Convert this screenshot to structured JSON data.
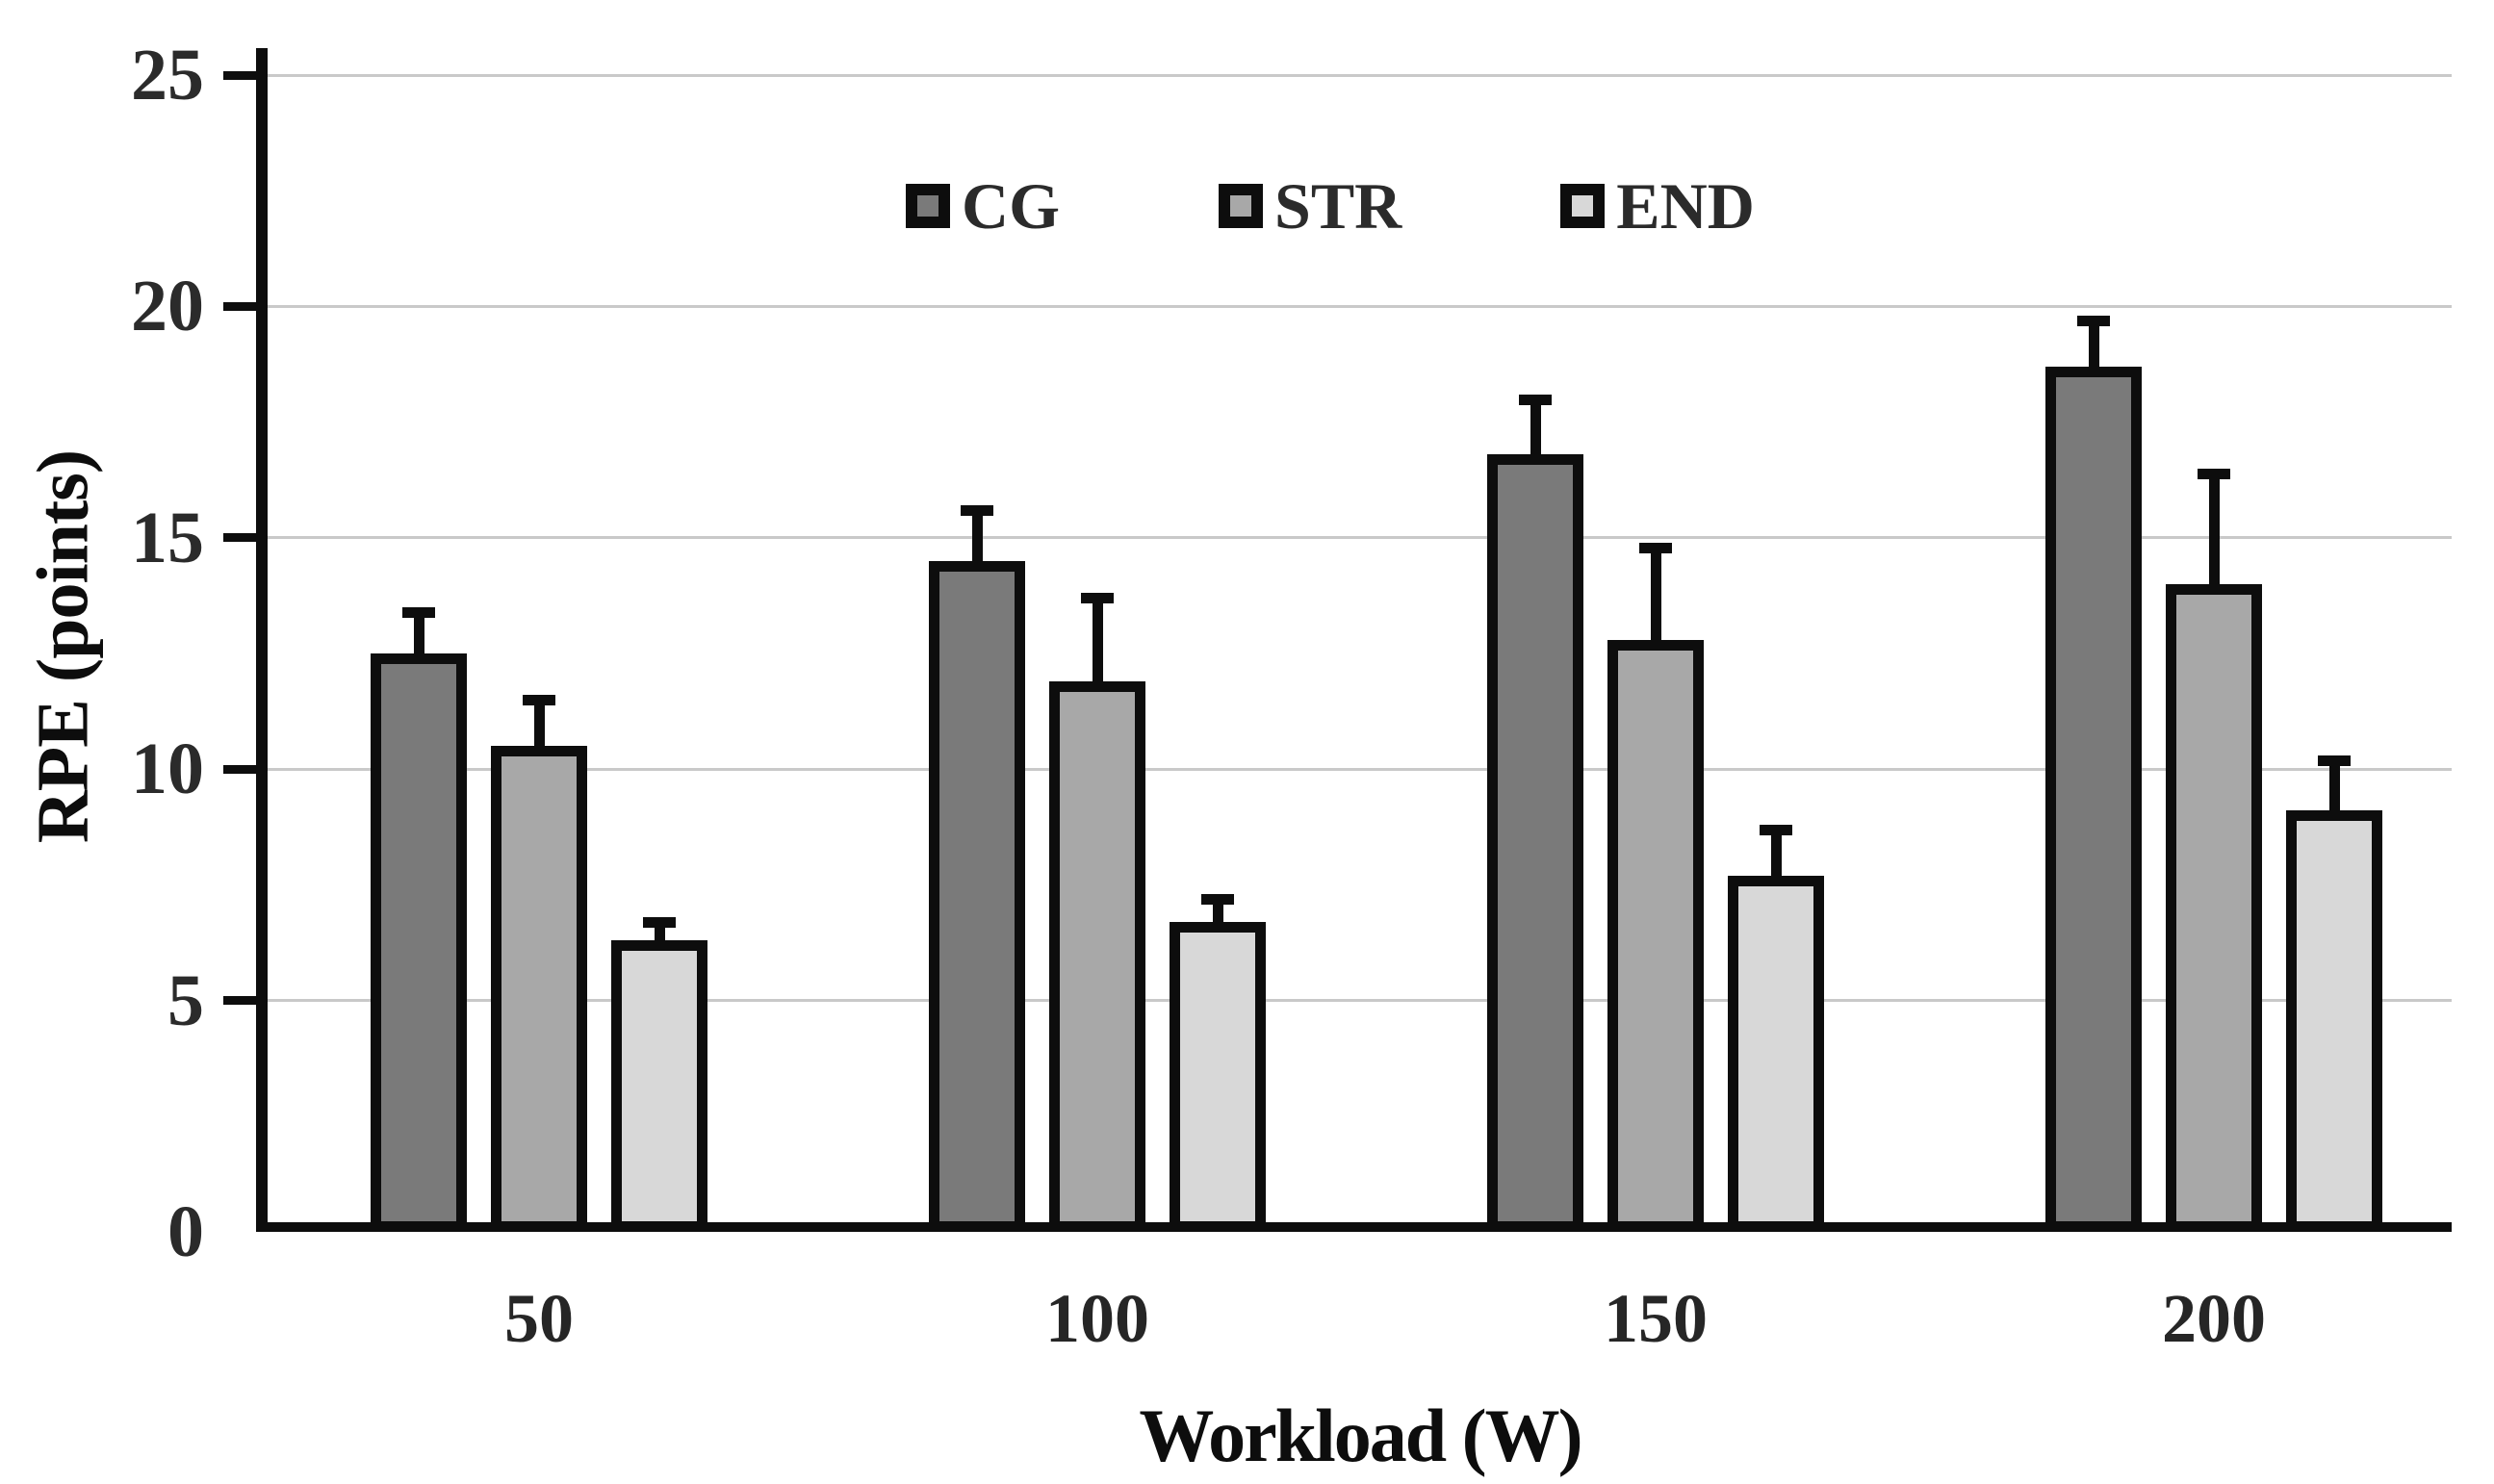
{
  "chart_data": {
    "type": "bar",
    "title": "",
    "xlabel": "Workload (W)",
    "ylabel": "RPE (points)",
    "categories": [
      "50",
      "100",
      "150",
      "200"
    ],
    "series": [
      {
        "name": "CG",
        "color": "#7a7a7a",
        "values": [
          12.5,
          14.5,
          16.8,
          18.7
        ],
        "errors_up": [
          1.0,
          1.2,
          1.3,
          1.1
        ]
      },
      {
        "name": "STR",
        "color": "#a8a8a8",
        "values": [
          10.5,
          11.9,
          12.8,
          14.0
        ],
        "errors_up": [
          1.1,
          1.9,
          2.1,
          2.5
        ]
      },
      {
        "name": "END",
        "color": "#d8d8d8",
        "values": [
          6.3,
          6.7,
          7.7,
          9.1
        ],
        "errors_up": [
          0.5,
          0.6,
          1.1,
          1.2
        ]
      }
    ],
    "ylim": [
      0,
      25
    ],
    "yticks": [
      0,
      5,
      10,
      15,
      20,
      25
    ],
    "grid": "horizontal",
    "legend_position": "top-center",
    "colors": {
      "axis": "#0d0d0d",
      "bar_border": "#0d0d0d",
      "error_bar": "#0d0d0d",
      "gridline": "#c9c9c9",
      "tick_label": "#2b2b2b",
      "background": "#ffffff"
    }
  }
}
